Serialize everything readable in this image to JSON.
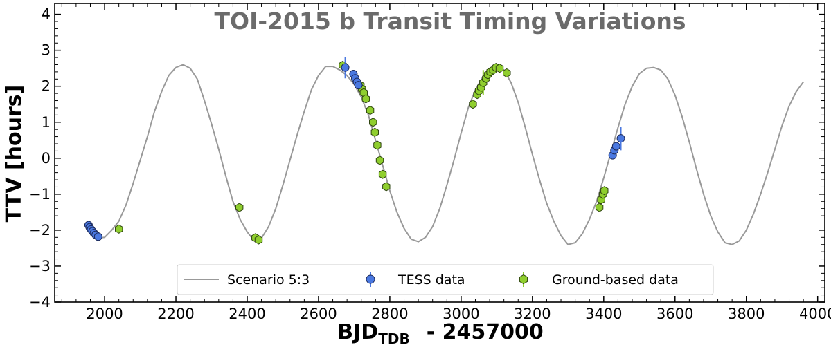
{
  "chart_data": {
    "type": "scatter",
    "title": "TOI-2015 b Transit Timing Variations",
    "xlabel_main": "BJD",
    "xlabel_sub": "TDB",
    "xlabel_rest": "- 2457000",
    "ylabel": "TTV [hours]",
    "xlim": [
      1860,
      4020
    ],
    "ylim": [
      -4,
      4.3
    ],
    "xticks": [
      2000,
      2200,
      2400,
      2600,
      2800,
      3000,
      3200,
      3400,
      3600,
      3800,
      4000
    ],
    "yticks": [
      -4,
      -3,
      -2,
      -1,
      0,
      1,
      2,
      3,
      4
    ],
    "grid": false,
    "legend_position": "bottom-center",
    "colors": {
      "model": "#999999",
      "tess": "#4a78e0",
      "ground": "#8fce2e",
      "title": "#6b6b6b"
    },
    "series": [
      {
        "name": "Scenario 5:3",
        "kind": "line",
        "x": [
          1960,
          1980,
          2000,
          2020,
          2040,
          2060,
          2080,
          2100,
          2120,
          2140,
          2160,
          2180,
          2200,
          2220,
          2240,
          2260,
          2280,
          2300,
          2320,
          2340,
          2360,
          2380,
          2400,
          2420,
          2440,
          2460,
          2480,
          2500,
          2520,
          2540,
          2560,
          2580,
          2600,
          2620,
          2640,
          2660,
          2680,
          2700,
          2720,
          2740,
          2760,
          2780,
          2800,
          2820,
          2840,
          2860,
          2880,
          2900,
          2920,
          2940,
          2960,
          2980,
          3000,
          3020,
          3040,
          3060,
          3080,
          3100,
          3120,
          3140,
          3160,
          3180,
          3200,
          3220,
          3240,
          3260,
          3280,
          3300,
          3320,
          3340,
          3360,
          3380,
          3400,
          3420,
          3440,
          3460,
          3480,
          3500,
          3520,
          3540,
          3560,
          3580,
          3600,
          3620,
          3640,
          3660,
          3680,
          3700,
          3720,
          3740,
          3760,
          3780,
          3800,
          3820,
          3840,
          3860,
          3880,
          3900,
          3920,
          3940,
          3960
        ],
        "y": [
          -2.05,
          -2.22,
          -2.2,
          -2.0,
          -1.75,
          -1.3,
          -0.7,
          -0.05,
          0.6,
          1.3,
          1.85,
          2.3,
          2.52,
          2.6,
          2.5,
          2.2,
          1.6,
          0.95,
          0.25,
          -0.5,
          -1.2,
          -1.7,
          -2.05,
          -2.3,
          -2.22,
          -1.9,
          -1.4,
          -0.75,
          -0.05,
          0.65,
          1.3,
          1.9,
          2.3,
          2.55,
          2.55,
          2.45,
          2.3,
          2.05,
          1.7,
          1.2,
          0.5,
          -0.2,
          -0.9,
          -1.5,
          -1.95,
          -2.25,
          -2.32,
          -2.2,
          -1.9,
          -1.4,
          -0.75,
          -0.05,
          0.7,
          1.4,
          1.9,
          2.25,
          2.45,
          2.55,
          2.45,
          2.1,
          1.55,
          0.85,
          0.1,
          -0.6,
          -1.25,
          -1.75,
          -2.15,
          -2.4,
          -2.35,
          -2.1,
          -1.7,
          -1.2,
          -0.55,
          0.15,
          0.85,
          1.5,
          2.0,
          2.35,
          2.5,
          2.52,
          2.45,
          2.2,
          1.75,
          1.15,
          0.45,
          -0.3,
          -1.0,
          -1.6,
          -2.05,
          -2.35,
          -2.4,
          -2.3,
          -2.0,
          -1.55,
          -1.0,
          -0.4,
          0.25,
          0.9,
          1.45,
          1.85,
          2.12
        ]
      },
      {
        "name": "TESS data",
        "kind": "points",
        "marker": "circle",
        "points": [
          {
            "x": 1955,
            "y": -1.86,
            "err": 0.05
          },
          {
            "x": 1958,
            "y": -1.92,
            "err": 0.05
          },
          {
            "x": 1962,
            "y": -1.98,
            "err": 0.05
          },
          {
            "x": 1966,
            "y": -2.03,
            "err": 0.05
          },
          {
            "x": 1970,
            "y": -2.08,
            "err": 0.05
          },
          {
            "x": 1975,
            "y": -2.13,
            "err": 0.05
          },
          {
            "x": 1982,
            "y": -2.18,
            "err": 0.05
          },
          {
            "x": 2675,
            "y": 2.52,
            "err": 0.3
          },
          {
            "x": 2698,
            "y": 2.34,
            "err": 0.05
          },
          {
            "x": 2703,
            "y": 2.22,
            "err": 0.05
          },
          {
            "x": 2708,
            "y": 2.12,
            "err": 0.05
          },
          {
            "x": 2712,
            "y": 2.03,
            "err": 0.05
          },
          {
            "x": 3425,
            "y": 0.08,
            "err": 0.05
          },
          {
            "x": 3430,
            "y": 0.22,
            "err": 0.05
          },
          {
            "x": 3435,
            "y": 0.33,
            "err": 0.05
          },
          {
            "x": 3448,
            "y": 0.55,
            "err": 0.33
          }
        ]
      },
      {
        "name": "Ground-based data",
        "kind": "points",
        "marker": "hexagon",
        "points": [
          {
            "x": 2040,
            "y": -1.97,
            "err": 0.05
          },
          {
            "x": 2378,
            "y": -1.37,
            "err": 0.05
          },
          {
            "x": 2423,
            "y": -2.21,
            "err": 0.05
          },
          {
            "x": 2432,
            "y": -2.27,
            "err": 0.05
          },
          {
            "x": 2668,
            "y": 2.58,
            "err": 0.05
          },
          {
            "x": 2718,
            "y": 2.02,
            "err": 0.05
          },
          {
            "x": 2722,
            "y": 1.92,
            "err": 0.05
          },
          {
            "x": 2727,
            "y": 1.82,
            "err": 0.05
          },
          {
            "x": 2733,
            "y": 1.65,
            "err": 0.05
          },
          {
            "x": 2745,
            "y": 1.33,
            "err": 0.05
          },
          {
            "x": 2753,
            "y": 1.0,
            "err": 0.05
          },
          {
            "x": 2758,
            "y": 0.72,
            "err": 0.05
          },
          {
            "x": 2765,
            "y": 0.36,
            "err": 0.05
          },
          {
            "x": 2772,
            "y": -0.06,
            "err": 0.05
          },
          {
            "x": 2780,
            "y": -0.45,
            "err": 0.05
          },
          {
            "x": 2790,
            "y": -0.79,
            "err": 0.05
          },
          {
            "x": 3033,
            "y": 1.5,
            "err": 0.05
          },
          {
            "x": 3045,
            "y": 1.77,
            "err": 0.05
          },
          {
            "x": 3050,
            "y": 1.87,
            "err": 0.05
          },
          {
            "x": 3056,
            "y": 1.97,
            "err": 0.05
          },
          {
            "x": 3062,
            "y": 2.1,
            "err": 0.35
          },
          {
            "x": 3070,
            "y": 2.22,
            "err": 0.05
          },
          {
            "x": 3075,
            "y": 2.32,
            "err": 0.05
          },
          {
            "x": 3082,
            "y": 2.4,
            "err": 0.05
          },
          {
            "x": 3090,
            "y": 2.45,
            "err": 0.05
          },
          {
            "x": 3098,
            "y": 2.52,
            "err": 0.05
          },
          {
            "x": 3108,
            "y": 2.5,
            "err": 0.05
          },
          {
            "x": 3128,
            "y": 2.37,
            "err": 0.05
          },
          {
            "x": 3388,
            "y": -1.37,
            "err": 0.05
          },
          {
            "x": 3393,
            "y": -1.15,
            "err": 0.05
          },
          {
            "x": 3398,
            "y": -1.0,
            "err": 0.05
          },
          {
            "x": 3402,
            "y": -0.9,
            "err": 0.05
          }
        ]
      }
    ]
  }
}
